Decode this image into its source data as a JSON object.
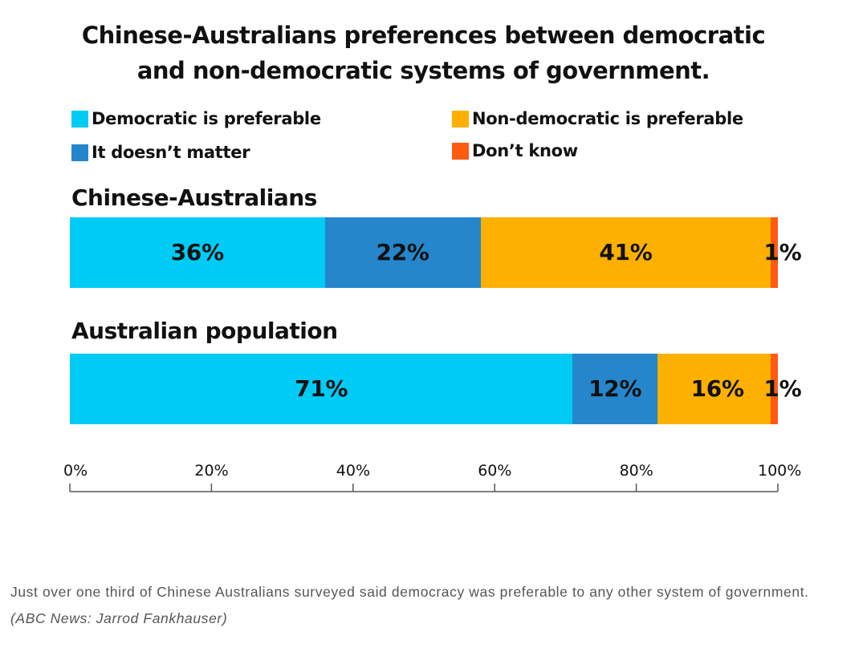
{
  "colors": {
    "democratic": "#00cbf5",
    "doesnt_matter": "#2586cc",
    "non_democratic": "#fdb000",
    "dont_know": "#ff5a12"
  },
  "chart_data": {
    "type": "bar",
    "orientation": "horizontal",
    "stacked": true,
    "title_lines": [
      "Chinese-Australians preferences between democratic",
      "and non-democratic systems of government."
    ],
    "categories": [
      "Chinese-Australians",
      "Australian population"
    ],
    "series": [
      {
        "name": "Democratic is preferable",
        "values": [
          36,
          71
        ],
        "labels": [
          "36%",
          "71%"
        ]
      },
      {
        "name": "It doesn’t matter",
        "values": [
          22,
          12
        ],
        "labels": [
          "22%",
          "12%"
        ]
      },
      {
        "name": "Non-democratic is preferable",
        "values": [
          41,
          16
        ],
        "labels": [
          "41%",
          "16%"
        ]
      },
      {
        "name": "Don’t know",
        "values": [
          1,
          1
        ],
        "labels": [
          "1%",
          "1%"
        ]
      }
    ],
    "xlim": [
      0,
      100
    ],
    "xticks": [
      0,
      20,
      40,
      60,
      80,
      100
    ],
    "xtick_labels": [
      "0%",
      "20%",
      "40%",
      "60%",
      "80%",
      "100%"
    ],
    "grid": false,
    "legend_position": "top"
  },
  "caption": {
    "text": "Just over one third of Chinese Australians surveyed said democracy was preferable to any other system of government.",
    "credit": "(ABC News: Jarrod Fankhauser)"
  }
}
